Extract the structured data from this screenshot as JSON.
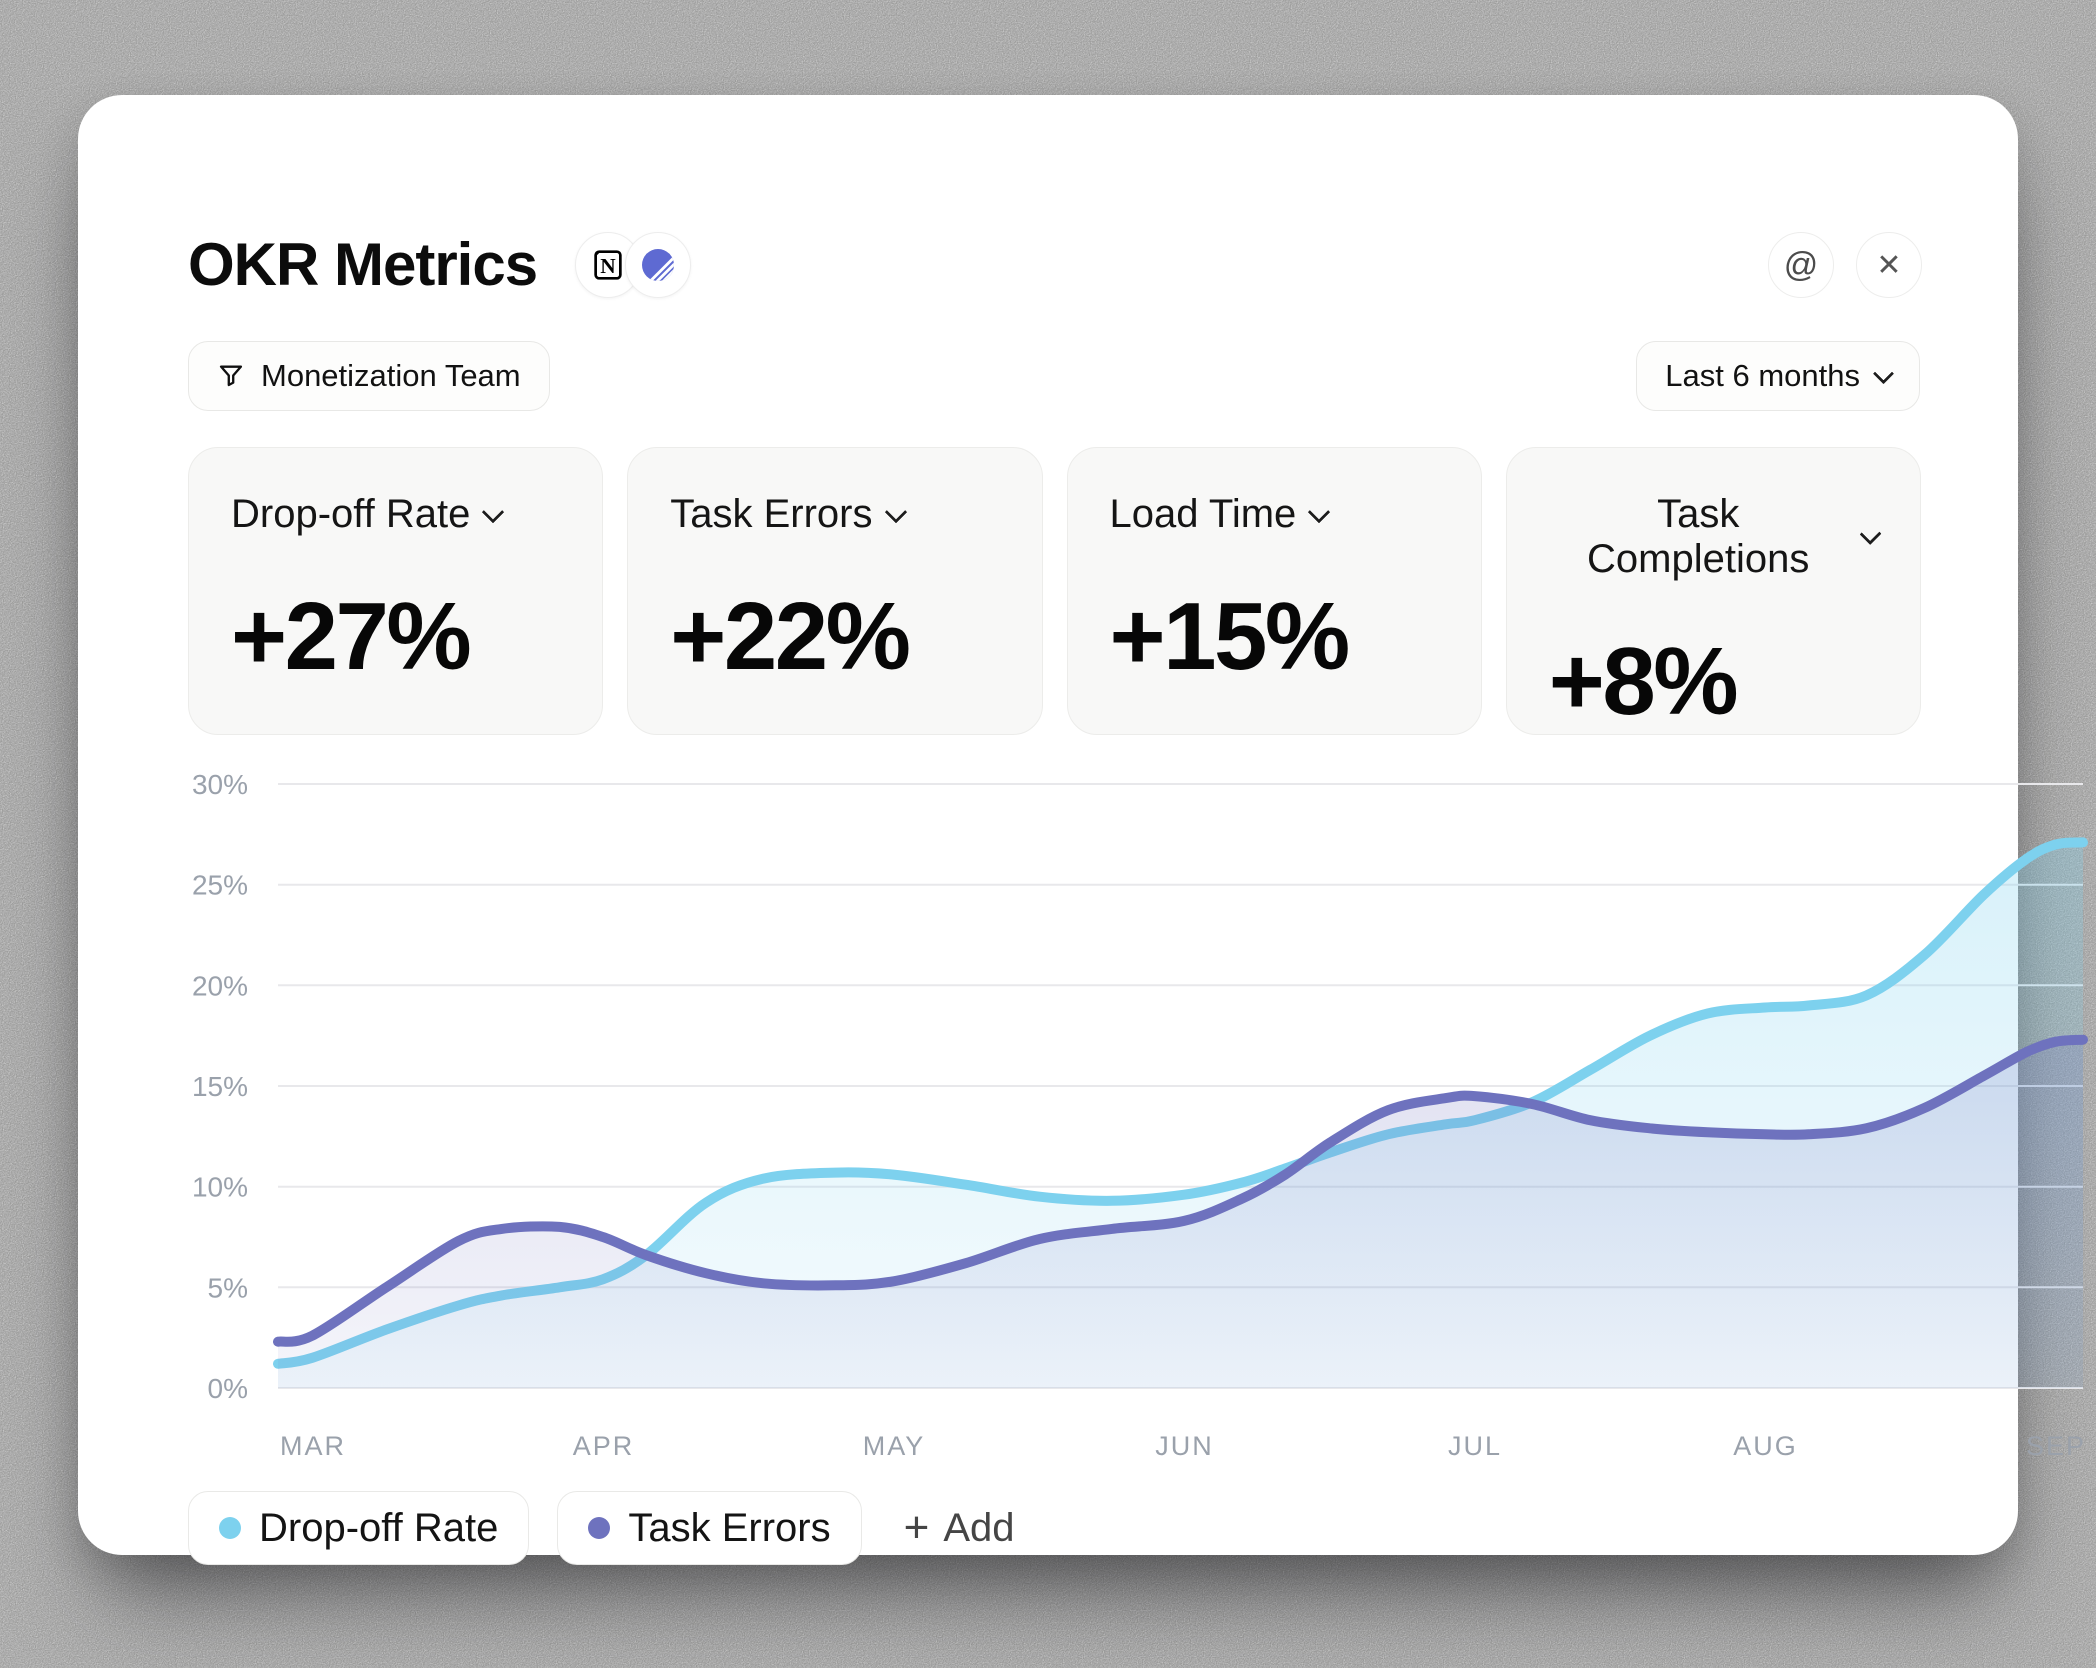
{
  "window": {
    "title": "OKR Metrics",
    "badges": [
      "notion-logo",
      "linear-logo"
    ],
    "mention_glyph": "@",
    "close_glyph": "✕",
    "filter_label": "Monetization Team",
    "range_label": "Last 6 months"
  },
  "metric_cards": [
    {
      "label": "Drop-off Rate",
      "value": "+27%"
    },
    {
      "label": "Task Errors",
      "value": "+22%"
    },
    {
      "label": "Load Time",
      "value": "+15%"
    },
    {
      "label": "Task Completions",
      "value": "+8%"
    }
  ],
  "chart_data": {
    "type": "area",
    "title": "OKR Metrics – Last 6 months",
    "categories": [
      "MAR",
      "APR",
      "MAY",
      "JUN",
      "JUL",
      "AUG",
      "SEP"
    ],
    "y_ticks": [
      30,
      25,
      20,
      15,
      10,
      5,
      0
    ],
    "y_tick_suffix": "%",
    "ylim": [
      0,
      30
    ],
    "grid": "horizontal",
    "grid_color": "#e8e8eb",
    "axis_text_color": "#9aa1ab",
    "series": [
      {
        "name": "Drop-off Rate",
        "color": "#7dd1ee",
        "fill_top": "rgba(125,209,238,0.30)",
        "fill_bottom": "rgba(125,209,238,0.08)",
        "values": [
          1.5,
          5.4,
          10.6,
          9.6,
          13.3,
          18.9,
          27.0
        ],
        "samples": [
          [
            0.0,
            1.2
          ],
          [
            0.019,
            1.5
          ],
          [
            0.06,
            2.9
          ],
          [
            0.1,
            4.1
          ],
          [
            0.124,
            4.6
          ],
          [
            0.156,
            5.0
          ],
          [
            0.18,
            5.4
          ],
          [
            0.204,
            6.6
          ],
          [
            0.237,
            9.2
          ],
          [
            0.269,
            10.4
          ],
          [
            0.309,
            10.7
          ],
          [
            0.341,
            10.6
          ],
          [
            0.381,
            10.1
          ],
          [
            0.422,
            9.5
          ],
          [
            0.462,
            9.3
          ],
          [
            0.502,
            9.6
          ],
          [
            0.534,
            10.2
          ],
          [
            0.558,
            10.9
          ],
          [
            0.583,
            11.7
          ],
          [
            0.615,
            12.6
          ],
          [
            0.647,
            13.1
          ],
          [
            0.663,
            13.3
          ],
          [
            0.695,
            14.2
          ],
          [
            0.727,
            15.8
          ],
          [
            0.76,
            17.5
          ],
          [
            0.792,
            18.6
          ],
          [
            0.824,
            18.9
          ],
          [
            0.848,
            19.0
          ],
          [
            0.88,
            19.5
          ],
          [
            0.912,
            21.5
          ],
          [
            0.945,
            24.5
          ],
          [
            0.969,
            26.3
          ],
          [
            0.985,
            27.0
          ],
          [
            1.0,
            27.1
          ]
        ]
      },
      {
        "name": "Task Errors",
        "color": "#6e72be",
        "fill_top": "rgba(110,114,190,0.22)",
        "fill_bottom": "rgba(110,114,190,0.07)",
        "values": [
          2.6,
          7.5,
          5.3,
          8.3,
          14.5,
          12.6,
          17.3
        ],
        "samples": [
          [
            0.0,
            2.3
          ],
          [
            0.019,
            2.6
          ],
          [
            0.06,
            5.0
          ],
          [
            0.1,
            7.3
          ],
          [
            0.124,
            7.9
          ],
          [
            0.156,
            8.0
          ],
          [
            0.18,
            7.5
          ],
          [
            0.204,
            6.6
          ],
          [
            0.237,
            5.7
          ],
          [
            0.269,
            5.2
          ],
          [
            0.309,
            5.1
          ],
          [
            0.341,
            5.3
          ],
          [
            0.381,
            6.2
          ],
          [
            0.422,
            7.4
          ],
          [
            0.462,
            7.9
          ],
          [
            0.502,
            8.3
          ],
          [
            0.534,
            9.4
          ],
          [
            0.558,
            10.6
          ],
          [
            0.583,
            12.2
          ],
          [
            0.615,
            13.8
          ],
          [
            0.647,
            14.4
          ],
          [
            0.663,
            14.5
          ],
          [
            0.695,
            14.1
          ],
          [
            0.727,
            13.3
          ],
          [
            0.76,
            12.9
          ],
          [
            0.792,
            12.7
          ],
          [
            0.824,
            12.6
          ],
          [
            0.848,
            12.6
          ],
          [
            0.88,
            12.9
          ],
          [
            0.912,
            13.9
          ],
          [
            0.945,
            15.5
          ],
          [
            0.969,
            16.7
          ],
          [
            0.985,
            17.2
          ],
          [
            1.0,
            17.3
          ]
        ]
      }
    ],
    "legend": [
      {
        "label": "Drop-off Rate",
        "color": "#7dd1ee"
      },
      {
        "label": "Task Errors",
        "color": "#6e72be"
      }
    ],
    "legend_position": "bottom-left",
    "legend_add": {
      "icon": "+",
      "label": "Add"
    }
  },
  "accent_colors": {
    "linear_blue": "#5e6ad2",
    "notion_black": "#000000"
  }
}
